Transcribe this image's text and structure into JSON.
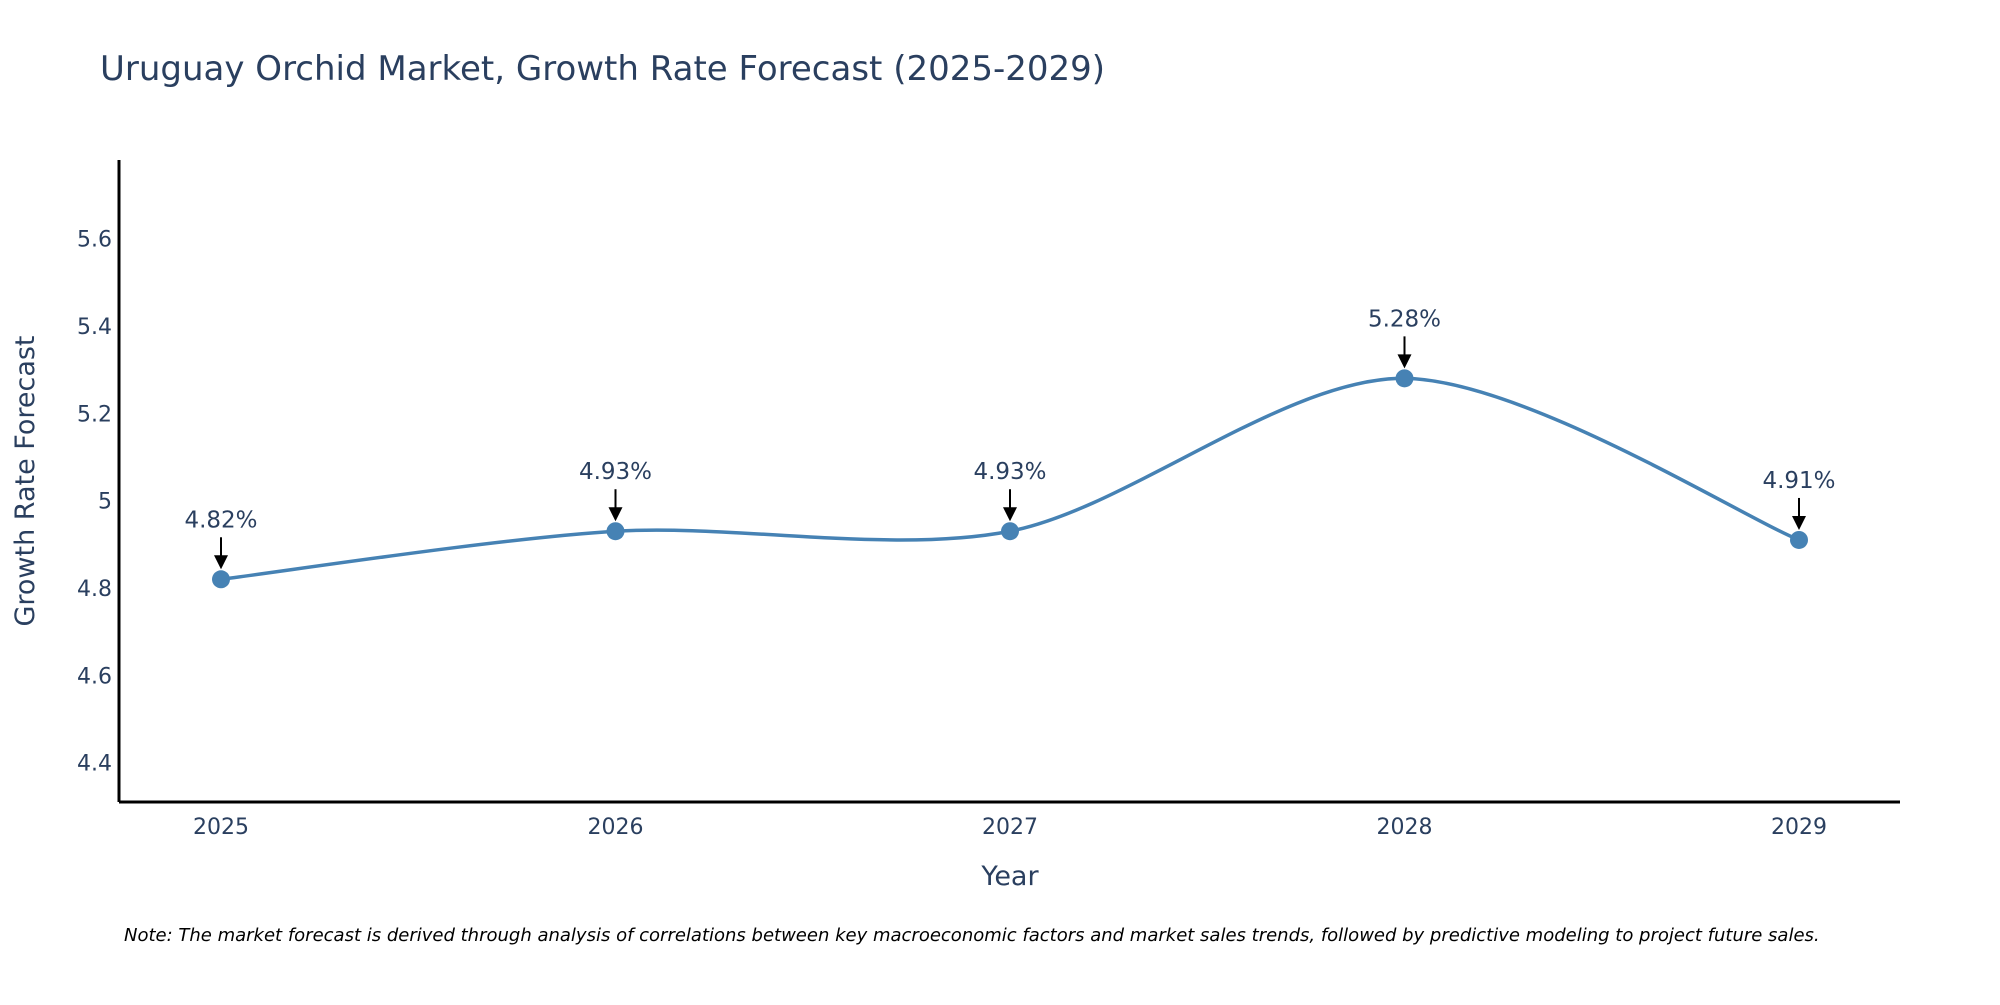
{
  "chart_data": {
    "type": "line",
    "title": "Uruguay Orchid Market, Growth Rate Forecast (2025-2029)",
    "xlabel": "Year",
    "ylabel": "Growth Rate Forecast",
    "categories": [
      "2025",
      "2026",
      "2027",
      "2028",
      "2029"
    ],
    "series": [
      {
        "name": "Growth Rate Forecast",
        "values": [
          4.82,
          4.93,
          4.93,
          5.28,
          4.91
        ],
        "labels": [
          "4.82%",
          "4.93%",
          "4.93%",
          "5.28%",
          "4.91%"
        ]
      }
    ],
    "ylim": [
      4.31,
      5.78
    ],
    "yticks": [
      4.4,
      4.6,
      4.8,
      5.0,
      5.2,
      5.4,
      5.6
    ],
    "ytick_labels": [
      "4.4",
      "4.6",
      "4.8",
      "5",
      "5.2",
      "5.4",
      "5.6"
    ],
    "grid": false,
    "line_shape": "spline",
    "colors": {
      "line": "#4682b4",
      "marker": "#4682b4",
      "arrow": "#000000",
      "axis": "#000000"
    },
    "footnote": "Note: The market forecast is derived through analysis of correlations between key macroeconomic factors and market sales trends, followed by predictive modeling to project future sales."
  }
}
